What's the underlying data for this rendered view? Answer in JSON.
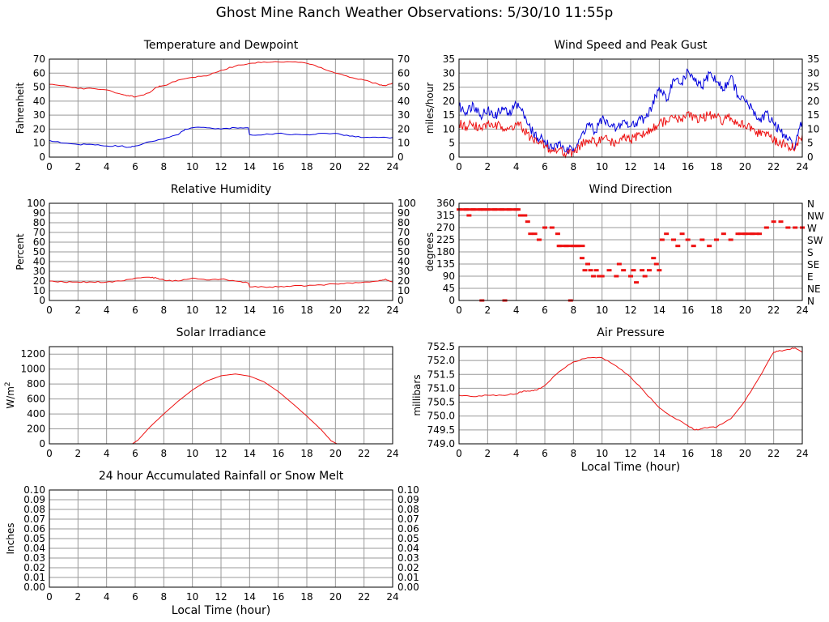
{
  "page_title": "Ghost Mine Ranch Weather Observations: 5/30/10 11:55p",
  "colors": {
    "red": "#ee1111",
    "blue": "#0000dd",
    "grid": "#999999",
    "frame": "#000000"
  },
  "chart_data": [
    {
      "id": "temperature",
      "type": "line",
      "title": "Temperature and Dewpoint",
      "ylabel": "Fahrenheit",
      "xlabel": "",
      "xlim": [
        0,
        24
      ],
      "ylim": [
        0,
        70
      ],
      "xticks": [
        0,
        2,
        4,
        6,
        8,
        10,
        12,
        14,
        16,
        18,
        20,
        22,
        24
      ],
      "yticks": [
        0,
        10,
        20,
        30,
        40,
        50,
        60,
        70
      ],
      "right_axis": true,
      "grid": true,
      "series": [
        {
          "color": "#ee1111",
          "x": [
            0,
            1,
            2,
            3,
            4,
            5,
            5.5,
            6,
            7,
            7.5,
            8,
            9,
            10,
            11,
            12,
            13,
            14,
            15,
            16,
            17,
            18,
            19,
            20,
            21,
            22,
            23,
            23.5,
            24
          ],
          "y": [
            52,
            51,
            49,
            49,
            48,
            45,
            44,
            43,
            46,
            50,
            51,
            55,
            57,
            58,
            62,
            65,
            67,
            68,
            68,
            68,
            67,
            64,
            60,
            57,
            55,
            52,
            51,
            53
          ]
        },
        {
          "color": "#0000dd",
          "x": [
            0,
            1,
            2,
            3,
            4,
            5,
            5.5,
            6,
            7,
            8,
            9,
            9.5,
            10,
            11,
            12,
            13,
            13.9,
            14,
            15,
            16,
            17,
            18,
            19,
            20,
            21,
            22,
            23,
            24
          ],
          "y": [
            12,
            10,
            9,
            9,
            8,
            8,
            7,
            8,
            11,
            13,
            16,
            20,
            21,
            21,
            20,
            21,
            21,
            16,
            16,
            17,
            16,
            16,
            17,
            17,
            15,
            14,
            14,
            14
          ]
        }
      ]
    },
    {
      "id": "wind-speed",
      "type": "line",
      "title": "Wind Speed and Peak Gust",
      "ylabel": "miles/hour",
      "xlabel": "",
      "xlim": [
        0,
        24
      ],
      "ylim": [
        0,
        35
      ],
      "xticks": [
        0,
        2,
        4,
        6,
        8,
        10,
        12,
        14,
        16,
        18,
        20,
        22,
        24
      ],
      "yticks": [
        0,
        5,
        10,
        15,
        20,
        25,
        30,
        35
      ],
      "right_axis": true,
      "grid": true,
      "series": [
        {
          "color": "#0000dd",
          "x": [
            0,
            0.5,
            1,
            1.5,
            2,
            2.5,
            3,
            3.5,
            4,
            4.5,
            5,
            5.5,
            6,
            6.5,
            7,
            7.5,
            8,
            8.5,
            9,
            9.5,
            10,
            10.5,
            11,
            11.5,
            12,
            12.5,
            13,
            13.5,
            14,
            14.5,
            15,
            15.5,
            16,
            16.5,
            17,
            17.5,
            18,
            18.5,
            19,
            19.5,
            20,
            20.5,
            21,
            21.5,
            22,
            22.5,
            23,
            23.5,
            24
          ],
          "y": [
            18,
            16,
            19,
            15,
            17,
            14,
            18,
            15,
            19,
            16,
            10,
            7,
            6,
            3,
            5,
            2,
            3,
            7,
            12,
            9,
            14,
            11,
            10,
            13,
            11,
            13,
            14,
            18,
            25,
            20,
            28,
            26,
            31,
            27,
            25,
            30,
            27,
            24,
            29,
            22,
            20,
            17,
            13,
            16,
            12,
            9,
            6,
            4,
            13
          ]
        },
        {
          "color": "#ee1111",
          "x": [
            0,
            0.5,
            1,
            1.5,
            2,
            2.5,
            3,
            3.5,
            4,
            4.5,
            5,
            5.5,
            6,
            6.5,
            7,
            7.5,
            8,
            8.5,
            9,
            9.5,
            10,
            10.5,
            11,
            11.5,
            12,
            12.5,
            13,
            13.5,
            14,
            14.5,
            15,
            15.5,
            16,
            16.5,
            17,
            17.5,
            18,
            18.5,
            19,
            19.5,
            20,
            20.5,
            21,
            21.5,
            22,
            22.5,
            23,
            23.5,
            24
          ],
          "y": [
            12,
            11,
            12,
            10,
            12,
            11,
            11,
            10,
            12,
            10,
            7,
            5,
            4,
            2,
            3,
            1,
            2,
            4,
            6,
            5,
            7,
            6,
            5,
            7,
            6,
            8,
            8,
            10,
            12,
            13,
            14,
            13,
            16,
            14,
            14,
            15,
            14,
            13,
            14,
            12,
            11,
            10,
            8,
            9,
            6,
            5,
            4,
            3,
            8
          ]
        }
      ]
    },
    {
      "id": "humidity",
      "type": "line",
      "title": "Relative Humidity",
      "ylabel": "Percent",
      "xlabel": "",
      "xlim": [
        0,
        24
      ],
      "ylim": [
        0,
        100
      ],
      "xticks": [
        0,
        2,
        4,
        6,
        8,
        10,
        12,
        14,
        16,
        18,
        20,
        22,
        24
      ],
      "yticks": [
        0,
        10,
        20,
        30,
        40,
        50,
        60,
        70,
        80,
        90,
        100
      ],
      "right_axis": true,
      "grid": true,
      "series": [
        {
          "color": "#ee1111",
          "x": [
            0,
            1,
            2,
            3,
            4,
            5,
            6,
            7,
            7.5,
            8,
            9,
            10,
            11,
            12,
            13,
            13.9,
            14,
            15,
            16,
            17,
            18,
            19,
            20,
            21,
            22,
            23,
            23.5,
            24
          ],
          "y": [
            20,
            19,
            19,
            19,
            19,
            20,
            23,
            24,
            23,
            21,
            20,
            23,
            21,
            22,
            20,
            18,
            14,
            14,
            14,
            15,
            15,
            16,
            17,
            18,
            19,
            20,
            22,
            19
          ]
        }
      ]
    },
    {
      "id": "wind-direction",
      "type": "scatter",
      "title": "Wind Direction",
      "ylabel": "degrees",
      "xlabel": "",
      "xlim": [
        0,
        24
      ],
      "ylim": [
        0,
        360
      ],
      "xticks": [
        0,
        2,
        4,
        6,
        8,
        10,
        12,
        14,
        16,
        18,
        20,
        22,
        24
      ],
      "yticks": [
        0,
        45,
        90,
        135,
        180,
        225,
        270,
        315,
        360
      ],
      "right_tick_labels": [
        "N",
        "NE",
        "E",
        "SE",
        "S",
        "SW",
        "W",
        "NW",
        "N"
      ],
      "grid": true,
      "series": [
        {
          "color": "#ee1111",
          "x": [
            0,
            0.5,
            0.7,
            1,
            1.5,
            1.7,
            2,
            2.5,
            3,
            3.5,
            4,
            4.3,
            4.6,
            4.8,
            5,
            5.3,
            5.6,
            6,
            6.5,
            6.9,
            7,
            7.5,
            8,
            8.3,
            8.6,
            8.8,
            9,
            9.2,
            9.4,
            9.6,
            9.8,
            10,
            10.5,
            11,
            11.2,
            11.5,
            12,
            12.2,
            12.4,
            12.8,
            13,
            13.3,
            13.6,
            13.8,
            14,
            14.2,
            14.5,
            15,
            15.3,
            15.6,
            16,
            16.4,
            17,
            17.5,
            18,
            18.5,
            19,
            19.5,
            20,
            20.5,
            21,
            21.5,
            22,
            22.5,
            23,
            23.5,
            24,
            1.6,
            3.2,
            7.8
          ],
          "y": [
            337,
            337,
            315,
            337,
            337,
            337,
            337,
            337,
            337,
            337,
            337,
            315,
            315,
            292,
            247,
            247,
            225,
            270,
            270,
            247,
            202,
            202,
            202,
            202,
            157,
            112,
            135,
            112,
            90,
            112,
            90,
            90,
            112,
            90,
            135,
            112,
            90,
            112,
            67,
            112,
            90,
            112,
            157,
            135,
            112,
            225,
            247,
            225,
            202,
            247,
            225,
            202,
            225,
            202,
            225,
            247,
            225,
            247,
            247,
            247,
            247,
            270,
            292,
            292,
            270,
            270,
            270,
            0,
            0,
            0
          ]
        }
      ]
    },
    {
      "id": "solar",
      "type": "line",
      "title": "Solar Irradiance",
      "ylabel": "W/m",
      "ylabel_sup": "2",
      "xlabel": "",
      "xlim": [
        0,
        24
      ],
      "ylim": [
        0,
        1300
      ],
      "xticks": [
        0,
        2,
        4,
        6,
        8,
        10,
        12,
        14,
        16,
        18,
        20,
        22,
        24
      ],
      "yticks": [
        0,
        200,
        400,
        600,
        800,
        1000,
        1200
      ],
      "right_axis": false,
      "grid": true,
      "series": [
        {
          "color": "#ee1111",
          "x": [
            0,
            5.8,
            6.2,
            7,
            8,
            9,
            10,
            11,
            12,
            13,
            14,
            15,
            16,
            17,
            18,
            19,
            19.7,
            20.1,
            24
          ],
          "y": [
            0,
            0,
            50,
            220,
            400,
            570,
            720,
            840,
            910,
            935,
            905,
            830,
            700,
            540,
            370,
            190,
            40,
            0,
            0
          ]
        }
      ]
    },
    {
      "id": "pressure",
      "type": "line",
      "title": "Air Pressure",
      "ylabel": "millibars",
      "xlabel": "Local Time (hour)",
      "xlim": [
        0,
        24
      ],
      "ylim": [
        749.0,
        752.5
      ],
      "xticks": [
        0,
        2,
        4,
        6,
        8,
        10,
        12,
        14,
        16,
        18,
        20,
        22,
        24
      ],
      "yticks": [
        "749.0",
        "749.5",
        "750.0",
        "750.5",
        "751.0",
        "751.5",
        "752.0",
        "752.5"
      ],
      "right_axis": false,
      "grid": true,
      "series": [
        {
          "color": "#ee1111",
          "x": [
            0,
            1,
            2,
            3,
            4,
            4.5,
            5,
            5.5,
            6,
            7,
            8,
            9,
            10,
            11,
            12,
            13,
            14,
            15,
            16,
            16.5,
            17,
            17.5,
            18,
            19,
            20,
            21,
            22,
            22.5,
            23,
            23.5,
            24
          ],
          "y": [
            750.75,
            750.7,
            750.75,
            750.75,
            750.8,
            750.9,
            750.9,
            750.95,
            751.1,
            751.6,
            751.95,
            752.1,
            752.1,
            751.8,
            751.4,
            750.85,
            750.3,
            749.95,
            749.65,
            749.5,
            749.55,
            749.6,
            749.6,
            749.9,
            750.55,
            751.4,
            752.3,
            752.35,
            752.4,
            752.45,
            752.3
          ]
        }
      ]
    },
    {
      "id": "rain",
      "type": "line",
      "title": "24 hour Accumulated Rainfall or Snow Melt",
      "ylabel": "Inches",
      "xlabel": "Local Time (hour)",
      "xlim": [
        0,
        24
      ],
      "ylim": [
        0,
        0.1
      ],
      "xticks": [
        0,
        2,
        4,
        6,
        8,
        10,
        12,
        14,
        16,
        18,
        20,
        22,
        24
      ],
      "yticks": [
        "0.00",
        "0.01",
        "0.02",
        "0.03",
        "0.04",
        "0.05",
        "0.06",
        "0.07",
        "0.08",
        "0.09",
        "0.10"
      ],
      "right_axis": true,
      "grid": true,
      "series": [
        {
          "color": "#ee1111",
          "x": [
            0,
            24
          ],
          "y": [
            0,
            0
          ]
        }
      ]
    }
  ]
}
